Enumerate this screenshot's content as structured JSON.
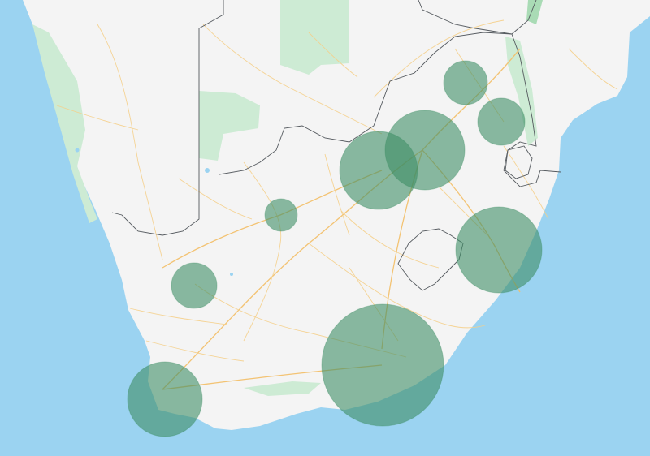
{
  "map": {
    "colors": {
      "water": "#9bd3f1",
      "land": "#f4f4f4",
      "park": "#cdebd4",
      "road": "#f5cf8a",
      "border": "#555a5f",
      "bubble_fill": "#3e8e65"
    },
    "bubbles": [
      {
        "id": "bubble-north-1",
        "value": 27
      },
      {
        "id": "bubble-northeast",
        "value": 29
      },
      {
        "id": "bubble-gauteng-west",
        "value": 48
      },
      {
        "id": "bubble-gauteng-east",
        "value": 49
      },
      {
        "id": "bubble-central",
        "value": 20
      },
      {
        "id": "bubble-east-coast",
        "value": 53
      },
      {
        "id": "bubble-northern-cape",
        "value": 28
      },
      {
        "id": "bubble-eastern-cape",
        "value": 75
      },
      {
        "id": "bubble-western-cape",
        "value": 46
      }
    ]
  }
}
